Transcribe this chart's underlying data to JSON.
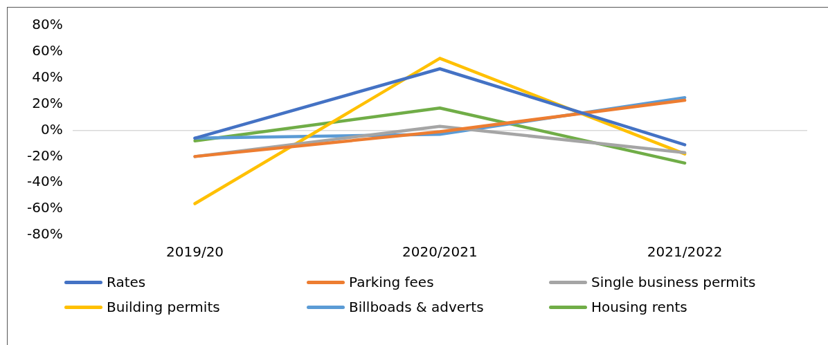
{
  "chart_data": {
    "type": "line",
    "categories": [
      "2019/20",
      "2020/2021",
      "2021/2022"
    ],
    "series": [
      {
        "name": "Rates",
        "color": "#4472c4",
        "values": [
          -6,
          47,
          -11
        ]
      },
      {
        "name": "Parking fees",
        "color": "#ed7d31",
        "values": [
          -20,
          -1,
          23
        ]
      },
      {
        "name": "Single business permits",
        "color": "#a5a5a5",
        "values": [
          -20,
          3,
          -17
        ]
      },
      {
        "name": "Building permits",
        "color": "#ffc000",
        "values": [
          -56,
          55,
          -18
        ]
      },
      {
        "name": "Billboads & adverts",
        "color": "#5b9bd5",
        "values": [
          -6,
          -3,
          25
        ]
      },
      {
        "name": "Housing rents",
        "color": "#70ad47",
        "values": [
          -8,
          17,
          -25
        ]
      }
    ],
    "ylim": [
      -80,
      80
    ],
    "yticks": [
      {
        "value": -80,
        "label": "-80%"
      },
      {
        "value": -60,
        "label": "-60%"
      },
      {
        "value": -40,
        "label": "-40%"
      },
      {
        "value": -20,
        "label": "-20%"
      },
      {
        "value": 0,
        "label": "0%"
      },
      {
        "value": 20,
        "label": "20%"
      },
      {
        "value": 40,
        "label": "40%"
      },
      {
        "value": 60,
        "label": "60%"
      },
      {
        "value": 80,
        "label": "80%"
      }
    ],
    "legend": "bottom",
    "marker": "none",
    "line_style": "solid"
  }
}
